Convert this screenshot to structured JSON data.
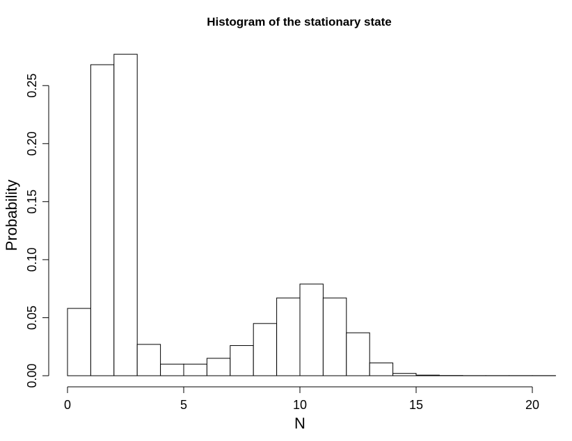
{
  "chart_data": {
    "type": "bar",
    "title": "Histogram of the stationary state",
    "xlabel": "N",
    "ylabel": "Probability",
    "bin_edges": [
      0,
      1,
      2,
      3,
      4,
      5,
      6,
      7,
      8,
      9,
      10,
      11,
      12,
      13,
      14,
      15,
      16,
      17,
      18,
      19,
      20,
      21
    ],
    "values": [
      0.058,
      0.268,
      0.277,
      0.027,
      0.01,
      0.01,
      0.015,
      0.026,
      0.045,
      0.067,
      0.079,
      0.067,
      0.037,
      0.011,
      0.002,
      0.0005,
      0.0002,
      0.0001,
      0.0001,
      0.0001,
      0.0001
    ],
    "xlim": [
      0,
      21
    ],
    "ylim": [
      0,
      0.28
    ],
    "x_ticks": [
      0,
      5,
      10,
      15,
      20
    ],
    "x_tick_labels": [
      "0",
      "5",
      "10",
      "15",
      "20"
    ],
    "y_ticks": [
      0,
      0.05,
      0.1,
      0.15,
      0.2,
      0.25
    ],
    "y_tick_labels": [
      "0.00",
      "0.05",
      "0.10",
      "0.15",
      "0.20",
      "0.25"
    ],
    "grid": false,
    "legend": "none"
  }
}
